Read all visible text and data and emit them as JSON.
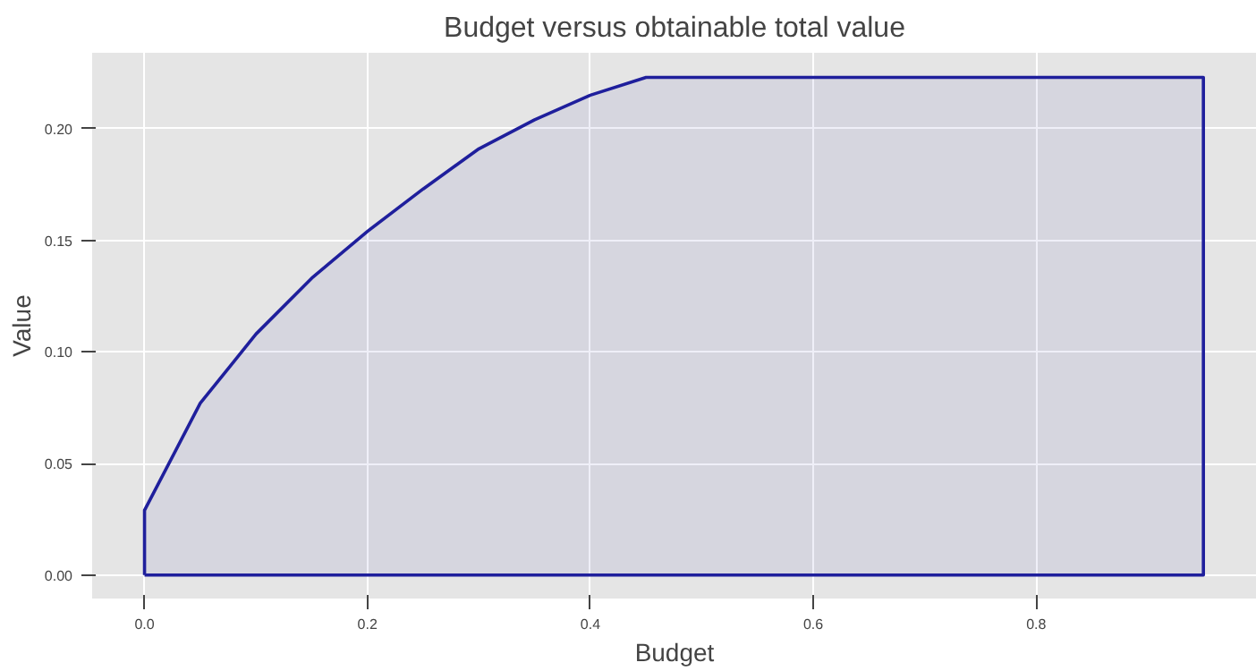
{
  "chart_data": {
    "type": "area",
    "title": "Budget versus obtainable total value",
    "xlabel": "Budget",
    "ylabel": "Value",
    "series": [
      {
        "color": "#1f1f9c",
        "x": [
          0,
          0.05,
          0.1,
          0.15,
          0.2,
          0.25,
          0.3,
          0.35,
          0.4,
          0.45,
          0.95
        ],
        "values": [
          0.029,
          0.077,
          0.108,
          0.133,
          0.154,
          0.173,
          0.191,
          0.204,
          0.215,
          0.223,
          0.223
        ]
      }
    ],
    "xlim": [
      -0.047,
      0.998
    ],
    "ylim": [
      -0.0105,
      0.234
    ],
    "xticks": [
      {
        "value": 0,
        "label": "0.0"
      },
      0.2,
      0.4,
      0.6,
      0.8
    ],
    "yticks": [
      {
        "value": 0,
        "label": "0.00"
      },
      0.05,
      {
        "value": 0.1,
        "label": "0.10"
      },
      0.15,
      {
        "value": 0.2,
        "label": "0.20"
      }
    ],
    "grid": true
  }
}
